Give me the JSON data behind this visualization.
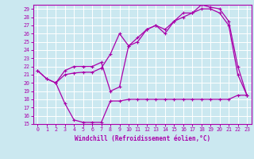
{
  "xlabel": "Windchill (Refroidissement éolien,°C)",
  "bg_color": "#cbe8f0",
  "grid_color": "#ffffff",
  "line_color": "#aa00aa",
  "xlim": [
    -0.5,
    23.5
  ],
  "ylim": [
    15,
    29.5
  ],
  "xticks": [
    0,
    1,
    2,
    3,
    4,
    5,
    6,
    7,
    8,
    9,
    10,
    11,
    12,
    13,
    14,
    15,
    16,
    17,
    18,
    19,
    20,
    21,
    22,
    23
  ],
  "yticks": [
    15,
    16,
    17,
    18,
    19,
    20,
    21,
    22,
    23,
    24,
    25,
    26,
    27,
    28,
    29
  ],
  "line1_x": [
    0,
    1,
    2,
    3,
    4,
    5,
    6,
    7,
    8,
    9,
    10,
    11,
    12,
    13,
    14,
    15,
    16,
    17,
    18,
    19,
    20,
    21,
    22,
    23
  ],
  "line1_y": [
    21.5,
    20.5,
    20.0,
    21.0,
    21.2,
    21.3,
    21.3,
    21.8,
    23.5,
    26.0,
    24.5,
    25.0,
    26.5,
    27.0,
    26.0,
    27.5,
    28.0,
    28.5,
    29.0,
    29.0,
    28.5,
    27.0,
    21.0,
    18.5
  ],
  "line2_x": [
    0,
    1,
    2,
    3,
    4,
    5,
    6,
    7,
    8,
    9,
    10,
    11,
    12,
    13,
    14,
    15,
    16,
    17,
    18,
    19,
    20,
    21,
    22,
    23
  ],
  "line2_y": [
    21.5,
    20.5,
    20.0,
    21.5,
    22.0,
    22.0,
    22.0,
    22.5,
    19.0,
    19.5,
    24.5,
    25.5,
    26.5,
    27.0,
    26.5,
    27.5,
    28.5,
    28.5,
    29.5,
    29.2,
    29.0,
    27.5,
    22.0,
    18.5
  ],
  "line3_x": [
    2,
    3,
    4,
    5,
    6,
    7,
    8,
    9,
    10,
    11,
    12,
    13,
    14,
    15,
    16,
    17,
    18,
    19,
    20,
    21,
    22,
    23
  ],
  "line3_y": [
    20.0,
    17.5,
    15.5,
    15.2,
    15.2,
    15.2,
    17.8,
    17.8,
    18.0,
    18.0,
    18.0,
    18.0,
    18.0,
    18.0,
    18.0,
    18.0,
    18.0,
    18.0,
    18.0,
    18.0,
    18.5,
    18.5
  ]
}
